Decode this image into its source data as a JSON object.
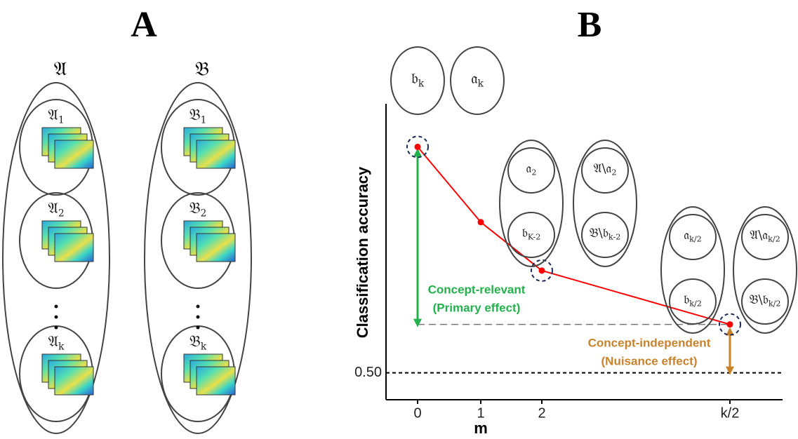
{
  "panel_a": {
    "label": "A",
    "groups": [
      {
        "title": "𝔄",
        "items": [
          {
            "base": "𝔄",
            "sub": "1"
          },
          {
            "base": "𝔄",
            "sub": "2"
          },
          {
            "base": "𝔄",
            "sub": "k"
          }
        ]
      },
      {
        "title": "𝔅",
        "items": [
          {
            "base": "𝔅",
            "sub": "1"
          },
          {
            "base": "𝔅",
            "sub": "2"
          },
          {
            "base": "𝔅",
            "sub": "k"
          }
        ]
      }
    ]
  },
  "panel_b": {
    "label": "B",
    "chart_data": {
      "type": "line",
      "x_label": "m",
      "y_label": "Classification accuracy",
      "categories": [
        "0",
        "1",
        "2",
        "k/2"
      ],
      "values": [
        0.92,
        0.78,
        0.69,
        0.59
      ],
      "color": "#ff0000",
      "ylim": [
        0.45,
        1.0
      ],
      "yticks": [
        {
          "value": 0.5,
          "label": "0.50"
        }
      ],
      "annotations": {
        "primary": [
          "Concept-relevant",
          "(Primary effect)"
        ],
        "nuisance": [
          "Concept-independent",
          "(Nuisance effect)"
        ]
      }
    },
    "sets": {
      "m0": [
        {
          "base": "𝔟",
          "sub": "k"
        },
        {
          "base": "𝔞",
          "sub": "k"
        }
      ],
      "m2": [
        {
          "base": "𝔞",
          "sub": "2"
        },
        {
          "base": "𝔟",
          "sub": "K-2"
        },
        {
          "base": "𝔄\\𝔞",
          "sub": "2"
        },
        {
          "base": "𝔅\\𝔟",
          "sub": "k-2"
        }
      ],
      "mk2": [
        {
          "base": "𝔞",
          "sub": "k/2"
        },
        {
          "base": "𝔟",
          "sub": "k/2"
        },
        {
          "base": "𝔄\\𝔞",
          "sub": "k/2"
        },
        {
          "base": "𝔅\\𝔟",
          "sub": "k/2"
        }
      ]
    }
  }
}
